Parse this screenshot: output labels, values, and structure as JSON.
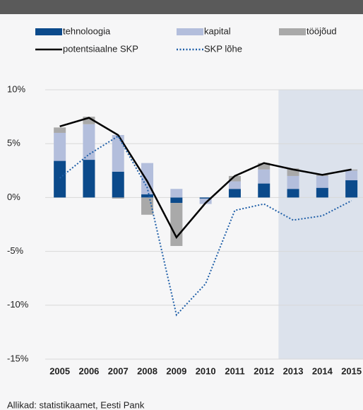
{
  "chart_data": {
    "type": "stacked-bar-line",
    "categories": [
      "2005",
      "2006",
      "2007",
      "2008",
      "2009",
      "2010",
      "2011",
      "2012",
      "2013",
      "2014",
      "2015"
    ],
    "series": [
      {
        "name": "tehnoloogia",
        "type": "bar",
        "color": "#0b4a8b",
        "values": [
          3.4,
          3.5,
          2.4,
          0.3,
          -0.5,
          -0.1,
          0.8,
          1.3,
          0.8,
          0.9,
          1.6
        ]
      },
      {
        "name": "kapital",
        "type": "bar",
        "color": "#b3bedc",
        "values": [
          2.6,
          3.3,
          3.4,
          2.9,
          0.8,
          -0.5,
          0.7,
          1.3,
          1.2,
          1.1,
          0.9
        ]
      },
      {
        "name": "tööjõud",
        "type": "bar",
        "color": "#a9a9a9",
        "values": [
          0.5,
          0.7,
          -0.1,
          -1.6,
          -4.0,
          0,
          0.5,
          0.6,
          0.7,
          0.1,
          0.1
        ]
      },
      {
        "name": "potentsiaalne SKP",
        "type": "line",
        "color": "#000000",
        "values": [
          6.6,
          7.4,
          5.8,
          1.5,
          -3.7,
          -0.5,
          2.0,
          3.2,
          2.6,
          2.1,
          2.6
        ]
      },
      {
        "name": "SKP lõhe",
        "type": "dotted-line",
        "color": "#1f5fa8",
        "values": [
          1.8,
          4.0,
          5.7,
          0.9,
          -10.9,
          -8.0,
          -1.2,
          -0.6,
          -2.1,
          -1.7,
          -0.3
        ]
      }
    ],
    "ylim": [
      -15,
      10
    ],
    "yticks": [
      {
        "value": -15,
        "label": "-15%"
      },
      {
        "value": -10,
        "label": "-10%"
      },
      {
        "value": -5,
        "label": "-5%"
      },
      {
        "value": 0,
        "label": "0%"
      },
      {
        "value": 5,
        "label": "5%"
      },
      {
        "value": 10,
        "label": "10%"
      }
    ],
    "grid": true,
    "shaded_start": "2013",
    "source": "Allikad: statistikaamet, Eesti Pank"
  }
}
